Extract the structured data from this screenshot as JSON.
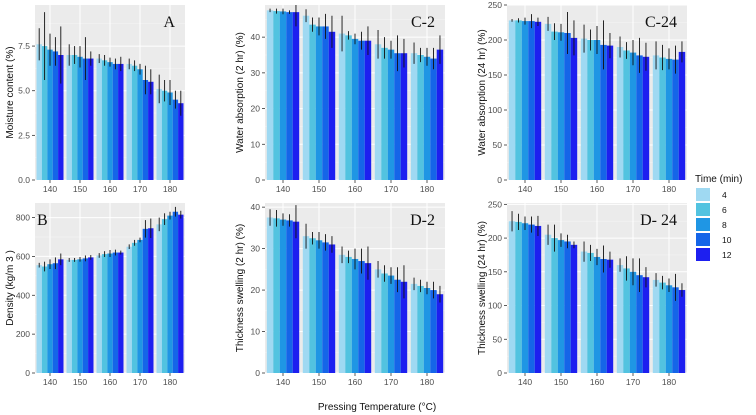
{
  "figure": {
    "x_title": "Pressing Temperature (°C)",
    "legend_title": "Time (min)"
  },
  "colors": [
    "#9fd9f2",
    "#52c3e0",
    "#1f96e4",
    "#1565e8",
    "#1d1ff0"
  ],
  "chart_data": [
    {
      "type": "bar",
      "panel": "A",
      "title": "A",
      "ylabel": "Moisture content (%)",
      "xlabel": "",
      "categories": [
        "140",
        "150",
        "160",
        "170",
        "180"
      ],
      "ylim": [
        0,
        9.8
      ],
      "yticks": [
        0,
        2.5,
        5,
        7.5
      ],
      "ytick_labels": [
        "0.0",
        "2.5",
        "5.0",
        "7.5"
      ],
      "series": [
        {
          "name": "4",
          "values": [
            7.6,
            7.0,
            6.8,
            6.5,
            5.1
          ],
          "err": [
            0.9,
            0.6,
            0.25,
            0.3,
            0.8
          ]
        },
        {
          "name": "6",
          "values": [
            7.5,
            7.0,
            6.7,
            6.4,
            5.0
          ],
          "err": [
            1.9,
            0.5,
            0.3,
            0.3,
            0.6
          ]
        },
        {
          "name": "8",
          "values": [
            7.3,
            6.9,
            6.6,
            6.2,
            4.9
          ],
          "err": [
            0.9,
            0.6,
            0.25,
            0.3,
            0.7
          ]
        },
        {
          "name": "10",
          "values": [
            7.2,
            6.8,
            6.5,
            5.6,
            4.5
          ],
          "err": [
            0.8,
            1.2,
            0.3,
            0.8,
            0.5
          ]
        },
        {
          "name": "12",
          "values": [
            7.0,
            6.8,
            6.5,
            5.5,
            4.3
          ],
          "err": [
            1.6,
            0.4,
            0.4,
            0.7,
            0.7
          ]
        }
      ]
    },
    {
      "type": "bar",
      "panel": "C-2",
      "title": "C-2",
      "ylabel": "Water absorption (2 hr) (%)",
      "xlabel": "",
      "categories": [
        "140",
        "150",
        "160",
        "170",
        "180"
      ],
      "ylim": [
        0,
        49
      ],
      "yticks": [
        0,
        10,
        20,
        30,
        40
      ],
      "ytick_labels": [
        "0",
        "10",
        "20",
        "30",
        "40"
      ],
      "series": [
        {
          "name": "4",
          "values": [
            47.5,
            46.0,
            41.0,
            38.0,
            35.5
          ],
          "err": [
            0.5,
            1.8,
            5.0,
            4.0,
            3.0
          ]
        },
        {
          "name": "6",
          "values": [
            47.3,
            43.5,
            40.5,
            37.0,
            35.0
          ],
          "err": [
            0.7,
            2.0,
            1.2,
            3.0,
            2.0
          ]
        },
        {
          "name": "8",
          "values": [
            47.2,
            43.0,
            39.5,
            36.5,
            34.5
          ],
          "err": [
            0.8,
            2.5,
            1.5,
            2.5,
            2.5
          ]
        },
        {
          "name": "10",
          "values": [
            47.0,
            43.0,
            39.0,
            35.5,
            34.0
          ],
          "err": [
            0.5,
            3.5,
            2.5,
            5.0,
            3.0
          ]
        },
        {
          "name": "12",
          "values": [
            47.0,
            41.5,
            39.0,
            35.5,
            36.5
          ],
          "err": [
            4.0,
            4.5,
            4.0,
            4.0,
            4.0
          ]
        }
      ]
    },
    {
      "type": "bar",
      "panel": "C-24",
      "title": "C-24",
      "ylabel": "Water absorption (24 hr) (%)",
      "xlabel": "",
      "categories": [
        "140",
        "150",
        "160",
        "170",
        "180"
      ],
      "ylim": [
        0,
        250
      ],
      "yticks": [
        0,
        50,
        100,
        150,
        200,
        250
      ],
      "ytick_labels": [
        "0",
        "50",
        "100",
        "150",
        "200",
        "250"
      ],
      "series": [
        {
          "name": "4",
          "values": [
            228,
            223,
            202,
            190,
            178
          ],
          "err": [
            2,
            10,
            20,
            15,
            20
          ]
        },
        {
          "name": "6",
          "values": [
            228,
            212,
            200,
            185,
            175
          ],
          "err": [
            3,
            12,
            15,
            12,
            18
          ]
        },
        {
          "name": "8",
          "values": [
            227,
            211,
            200,
            182,
            173
          ],
          "err": [
            5,
            12,
            20,
            18,
            15
          ]
        },
        {
          "name": "10",
          "values": [
            227,
            210,
            193,
            178,
            172
          ],
          "err": [
            10,
            30,
            35,
            25,
            20
          ]
        },
        {
          "name": "12",
          "values": [
            226,
            203,
            192,
            176,
            183
          ],
          "err": [
            6,
            25,
            18,
            20,
            15
          ]
        }
      ]
    },
    {
      "type": "bar",
      "panel": "B",
      "title": "B",
      "ylabel": "Density (kg/m 3 )",
      "xlabel": "",
      "categories": [
        "140",
        "150",
        "160",
        "170",
        "180"
      ],
      "ylim": [
        0,
        875
      ],
      "yticks": [
        0,
        200,
        400,
        600,
        800
      ],
      "ytick_labels": [
        "0",
        "200",
        "400",
        "600",
        "800"
      ],
      "series": [
        {
          "name": "4",
          "values": [
            555,
            582,
            605,
            650,
            765
          ],
          "err": [
            12,
            10,
            12,
            12,
            35
          ]
        },
        {
          "name": "6",
          "values": [
            548,
            582,
            612,
            670,
            792
          ],
          "err": [
            25,
            10,
            15,
            15,
            30
          ]
        },
        {
          "name": "8",
          "values": [
            560,
            585,
            615,
            685,
            810
          ],
          "err": [
            25,
            12,
            18,
            12,
            20
          ]
        },
        {
          "name": "10",
          "values": [
            565,
            590,
            620,
            742,
            830
          ],
          "err": [
            30,
            15,
            15,
            45,
            25
          ]
        },
        {
          "name": "12",
          "values": [
            585,
            595,
            620,
            745,
            815
          ],
          "err": [
            30,
            12,
            10,
            50,
            20
          ]
        }
      ]
    },
    {
      "type": "bar",
      "panel": "D-2",
      "title": "D-2",
      "ylabel": "Thickness swelling (2 hr) (%)",
      "xlabel": "",
      "categories": [
        "140",
        "150",
        "160",
        "170",
        "180"
      ],
      "ylim": [
        0,
        41
      ],
      "yticks": [
        0,
        10,
        20,
        30,
        40
      ],
      "ytick_labels": [
        "0",
        "10",
        "20",
        "30",
        "40"
      ],
      "series": [
        {
          "name": "4",
          "values": [
            37.5,
            33.0,
            28.5,
            25.0,
            21.5
          ],
          "err": [
            2.0,
            3.0,
            2.0,
            2.0,
            1.5
          ]
        },
        {
          "name": "6",
          "values": [
            37.3,
            32.5,
            28.0,
            24.0,
            21.0
          ],
          "err": [
            2.0,
            1.5,
            1.5,
            2.0,
            1.5
          ]
        },
        {
          "name": "8",
          "values": [
            37.0,
            32.0,
            27.5,
            23.5,
            20.5
          ],
          "err": [
            1.5,
            2.0,
            2.5,
            2.0,
            1.5
          ]
        },
        {
          "name": "10",
          "values": [
            36.8,
            31.5,
            27.0,
            22.5,
            20.0
          ],
          "err": [
            1.5,
            2.0,
            3.0,
            3.0,
            2.0
          ]
        },
        {
          "name": "12",
          "values": [
            36.5,
            31.0,
            26.5,
            22.0,
            19.0
          ],
          "err": [
            4.0,
            2.0,
            4.0,
            4.0,
            2.0
          ]
        }
      ]
    },
    {
      "type": "bar",
      "panel": "D-24",
      "title": "D- 24",
      "ylabel": "Thickness swelling (24 hr) (%)",
      "xlabel": "",
      "categories": [
        "140",
        "150",
        "160",
        "170",
        "180"
      ],
      "ylim": [
        0,
        252
      ],
      "yticks": [
        0,
        50,
        100,
        150,
        200,
        250
      ],
      "ytick_labels": [
        "0",
        "50",
        "100",
        "150",
        "200",
        "250"
      ],
      "series": [
        {
          "name": "4",
          "values": [
            225,
            205,
            180,
            160,
            138
          ],
          "err": [
            15,
            15,
            15,
            10,
            10
          ]
        },
        {
          "name": "6",
          "values": [
            224,
            200,
            178,
            155,
            134
          ],
          "err": [
            12,
            20,
            12,
            18,
            10
          ]
        },
        {
          "name": "8",
          "values": [
            222,
            197,
            172,
            150,
            130
          ],
          "err": [
            10,
            10,
            12,
            20,
            10
          ]
        },
        {
          "name": "10",
          "values": [
            220,
            195,
            169,
            145,
            127
          ],
          "err": [
            12,
            10,
            20,
            25,
            20
          ]
        },
        {
          "name": "12",
          "values": [
            218,
            190,
            168,
            142,
            123
          ],
          "err": [
            15,
            5,
            12,
            15,
            10
          ]
        }
      ]
    }
  ]
}
